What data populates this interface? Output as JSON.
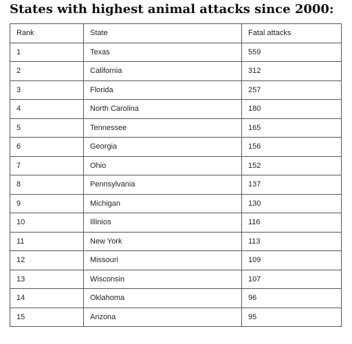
{
  "title": "States with highest animal attacks since 2000:",
  "table": {
    "headers": [
      "Rank",
      "State",
      "Fatal attacks"
    ],
    "rows": [
      [
        "1",
        "Texas",
        "559"
      ],
      [
        "2",
        "California",
        "312"
      ],
      [
        "3",
        "Florida",
        "257"
      ],
      [
        "4",
        "North Carolina",
        "180"
      ],
      [
        "5",
        "Tennessee",
        "165"
      ],
      [
        "6",
        "Georgia",
        "156"
      ],
      [
        "7",
        "Ohio",
        "152"
      ],
      [
        "8",
        "Pennsylvania",
        "137"
      ],
      [
        "9",
        "Michigan",
        "130"
      ],
      [
        "10",
        "Illinios",
        "116"
      ],
      [
        "11",
        "New York",
        "113"
      ],
      [
        "12",
        "Missouri",
        "109"
      ],
      [
        "13",
        "Wisconsin",
        "107"
      ],
      [
        "14",
        "Oklahoma",
        "96"
      ],
      [
        "15",
        "Arizona",
        "95"
      ]
    ]
  }
}
